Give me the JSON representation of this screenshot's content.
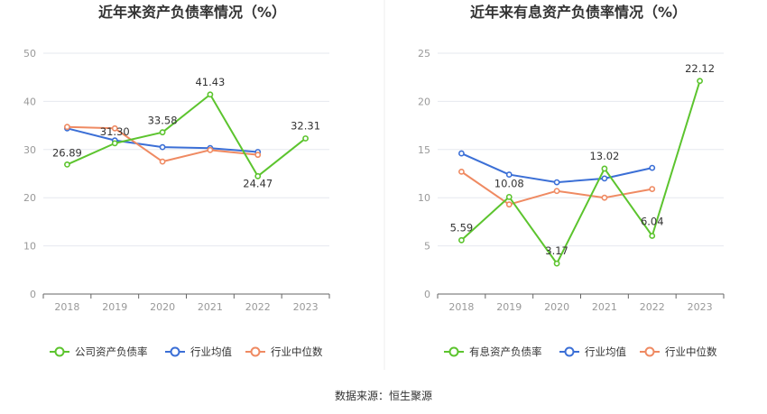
{
  "source_label": "数据来源：恒生聚源",
  "colors": {
    "company": "#5cc42e",
    "avg": "#3b6fd6",
    "median": "#ef8a62",
    "grid": "#e6e8ef",
    "axis": "#666666"
  },
  "chart_data": [
    {
      "type": "line",
      "title": "近年来资产负债率情况（%）",
      "categories": [
        "2018",
        "2019",
        "2020",
        "2021",
        "2022",
        "2023"
      ],
      "ylim": [
        0,
        50
      ],
      "yticks": [
        0,
        10,
        20,
        30,
        40,
        50
      ],
      "series": [
        {
          "name": "公司资产负债率",
          "key": "company",
          "values": [
            26.89,
            31.3,
            33.58,
            41.43,
            24.47,
            32.31
          ],
          "labels": [
            "26.89",
            "31.30",
            "33.58",
            "41.43",
            "24.47",
            "32.31"
          ]
        },
        {
          "name": "行业均值",
          "key": "avg",
          "values": [
            34.4,
            31.9,
            30.5,
            30.3,
            29.5,
            null
          ]
        },
        {
          "name": "行业中位数",
          "key": "median",
          "values": [
            34.7,
            34.4,
            27.5,
            29.9,
            28.9,
            null
          ]
        }
      ]
    },
    {
      "type": "line",
      "title": "近年来有息资产负债率情况（%）",
      "categories": [
        "2018",
        "2019",
        "2020",
        "2021",
        "2022",
        "2023"
      ],
      "ylim": [
        0,
        25
      ],
      "yticks": [
        0,
        5,
        10,
        15,
        20,
        25
      ],
      "series": [
        {
          "name": "有息资产负债率",
          "key": "company",
          "values": [
            5.59,
            10.08,
            3.17,
            13.02,
            6.04,
            22.12
          ],
          "labels": [
            "5.59",
            "10.08",
            "3.17",
            "13.02",
            "6.04",
            "22.12"
          ]
        },
        {
          "name": "行业均值",
          "key": "avg",
          "values": [
            14.6,
            12.4,
            11.6,
            12.0,
            13.1,
            null
          ]
        },
        {
          "name": "行业中位数",
          "key": "median",
          "values": [
            12.7,
            9.3,
            10.7,
            10.0,
            10.9,
            null
          ]
        }
      ]
    }
  ]
}
